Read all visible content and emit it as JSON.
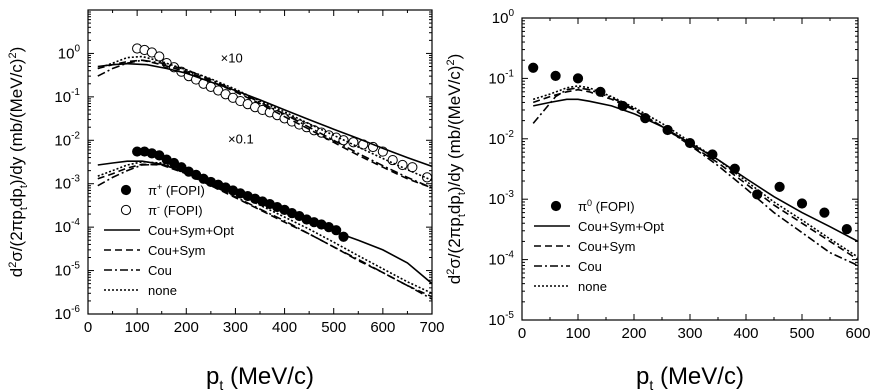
{
  "chart_data": [
    {
      "type": "scatter",
      "panel": "left",
      "xlabel_base": "p",
      "xlabel_sub": "t",
      "xlabel_unit": " (MeV/c)",
      "ylabel": "d²σ/(2πp_t dp_t)/dy (mb/(MeV/c)²)",
      "ylabel_parts": [
        "d",
        "2",
        "σ/(2πp",
        "t",
        "dp",
        "t",
        ")/dy (mb/(MeV/c)",
        "2",
        ")"
      ],
      "xlim": [
        0,
        700
      ],
      "ylim": [
        1e-06,
        10
      ],
      "yscale": "log",
      "xticks": [
        0,
        100,
        200,
        300,
        400,
        500,
        600,
        700
      ],
      "yticks": [
        -6,
        -5,
        -4,
        -3,
        -2,
        -1,
        0
      ],
      "annotations": [
        {
          "text": "×10",
          "x": 270,
          "y": 0.62
        },
        {
          "text": "×0.1",
          "x": 285,
          "y": 0.0085
        }
      ],
      "legend": {
        "placement": "bottom-left",
        "entries": [
          {
            "label_base": "π",
            "label_sup": "+",
            "label_rest": " (FOPI)",
            "marker": "filled-circle"
          },
          {
            "label_base": "π",
            "label_sup": "-",
            "label_rest": " (FOPI)",
            "marker": "open-circle"
          },
          {
            "label": "Cou+Sym+Opt",
            "dash": "solid"
          },
          {
            "label": "Cou+Sym",
            "dash": "dash"
          },
          {
            "label": "Cou",
            "dash": "dashdot"
          },
          {
            "label": "none",
            "dash": "dot"
          }
        ]
      },
      "series": [
        {
          "name": "π- (FOPI)",
          "kind": "points",
          "marker": "open",
          "x": [
            100,
            115,
            130,
            145,
            160,
            175,
            190,
            205,
            220,
            235,
            250,
            265,
            280,
            295,
            310,
            325,
            340,
            355,
            370,
            385,
            400,
            415,
            430,
            445,
            460,
            475,
            490,
            505,
            520,
            540,
            560,
            580,
            600,
            620,
            640,
            660,
            690
          ],
          "y": [
            1.3,
            1.2,
            1.05,
            0.85,
            0.6,
            0.48,
            0.38,
            0.3,
            0.25,
            0.2,
            0.17,
            0.14,
            0.115,
            0.095,
            0.08,
            0.068,
            0.058,
            0.05,
            0.044,
            0.038,
            0.032,
            0.027,
            0.023,
            0.02,
            0.017,
            0.015,
            0.013,
            0.0115,
            0.01,
            0.009,
            0.008,
            0.007,
            0.0055,
            0.0035,
            0.0027,
            0.0024,
            0.0014
          ]
        },
        {
          "name": "π+ (FOPI)",
          "kind": "points",
          "marker": "filled",
          "x": [
            100,
            115,
            130,
            145,
            160,
            175,
            190,
            205,
            220,
            235,
            250,
            265,
            280,
            295,
            310,
            325,
            340,
            355,
            370,
            385,
            400,
            415,
            430,
            445,
            460,
            475,
            490,
            505,
            520
          ],
          "y": [
            0.0055,
            0.0055,
            0.005,
            0.0045,
            0.0036,
            0.003,
            0.0024,
            0.0019,
            0.0016,
            0.0013,
            0.0011,
            0.00095,
            0.00082,
            0.0007,
            0.0006,
            0.00052,
            0.00045,
            0.00039,
            0.00034,
            0.00029,
            0.00025,
            0.00021,
            0.00018,
            0.00015,
            0.00013,
            0.000115,
            0.0001,
            8.5e-05,
            6e-05
          ]
        },
        {
          "name": "Cou+Sym+Opt (π-)",
          "kind": "line",
          "dash": "solid",
          "x": [
            20,
            50,
            80,
            120,
            160,
            200,
            250,
            300,
            350,
            400,
            450,
            500,
            550,
            600,
            650,
            700
          ],
          "y": [
            0.5,
            0.55,
            0.58,
            0.55,
            0.45,
            0.35,
            0.22,
            0.14,
            0.085,
            0.05,
            0.03,
            0.018,
            0.011,
            0.0065,
            0.004,
            0.0025
          ]
        },
        {
          "name": "Cou+Sym (π-)",
          "kind": "line",
          "dash": "dash",
          "x": [
            20,
            50,
            80,
            110,
            150,
            200,
            250,
            300,
            350,
            400,
            450,
            500,
            550,
            600,
            650,
            700
          ],
          "y": [
            0.45,
            0.55,
            0.65,
            0.7,
            0.55,
            0.38,
            0.23,
            0.13,
            0.07,
            0.035,
            0.018,
            0.009,
            0.0045,
            0.0024,
            0.0013,
            0.0008
          ]
        },
        {
          "name": "Cou (π-)",
          "kind": "line",
          "dash": "dashdot",
          "x": [
            20,
            50,
            80,
            110,
            150,
            200,
            250,
            300,
            350,
            400,
            450,
            500,
            550,
            600,
            650,
            700
          ],
          "y": [
            0.3,
            0.45,
            0.6,
            0.7,
            0.6,
            0.42,
            0.25,
            0.14,
            0.075,
            0.04,
            0.02,
            0.01,
            0.005,
            0.0026,
            0.0014,
            0.0008
          ]
        },
        {
          "name": "none (π-)",
          "kind": "line",
          "dash": "dot",
          "x": [
            20,
            50,
            80,
            110,
            150,
            200,
            250,
            300,
            350,
            400,
            450,
            500,
            550,
            600,
            650,
            700
          ],
          "y": [
            0.45,
            0.6,
            0.8,
            0.85,
            0.65,
            0.42,
            0.26,
            0.15,
            0.08,
            0.045,
            0.024,
            0.013,
            0.007,
            0.0038,
            0.0021,
            0.0012
          ]
        },
        {
          "name": "Cou+Sym+Opt (π+)",
          "kind": "line",
          "dash": "solid",
          "x": [
            20,
            50,
            80,
            110,
            150,
            200,
            250,
            300,
            350,
            400,
            450,
            500,
            550,
            600,
            650,
            700
          ],
          "y": [
            0.0027,
            0.003,
            0.0033,
            0.0033,
            0.0028,
            0.0018,
            0.0011,
            0.00065,
            0.0004,
            0.00024,
            0.00014,
            8e-05,
            5e-05,
            3e-05,
            1.5e-05,
            5e-06
          ]
        },
        {
          "name": "Cou+Sym (π+)",
          "kind": "line",
          "dash": "dash",
          "x": [
            20,
            50,
            80,
            110,
            150,
            200,
            250,
            300,
            350,
            400,
            450,
            500,
            550,
            600,
            650,
            700
          ],
          "y": [
            0.0013,
            0.0017,
            0.0023,
            0.0028,
            0.0027,
            0.0017,
            0.0009,
            0.00048,
            0.00025,
            0.00013,
            7e-05,
            3.5e-05,
            1.7e-05,
            9e-06,
            4.5e-06,
            2.5e-06
          ]
        },
        {
          "name": "Cou (π+)",
          "kind": "line",
          "dash": "dashdot",
          "x": [
            20,
            50,
            80,
            110,
            150,
            200,
            250,
            300,
            350,
            400,
            450,
            500,
            550,
            600,
            650,
            700
          ],
          "y": [
            0.0009,
            0.0014,
            0.002,
            0.0027,
            0.0028,
            0.0018,
            0.00095,
            0.0005,
            0.00026,
            0.00014,
            7e-05,
            3.5e-05,
            1.8e-05,
            9e-06,
            4.5e-06,
            2.2e-06
          ]
        },
        {
          "name": "none (π+)",
          "kind": "line",
          "dash": "dot",
          "x": [
            20,
            50,
            80,
            110,
            150,
            200,
            250,
            300,
            350,
            400,
            450,
            500,
            550,
            600,
            650,
            700
          ],
          "y": [
            0.0015,
            0.002,
            0.0027,
            0.0032,
            0.003,
            0.002,
            0.0011,
            0.0006,
            0.00032,
            0.00017,
            9e-05,
            4.5e-05,
            2.2e-05,
            1.1e-05,
            5.5e-06,
            3e-06
          ]
        }
      ]
    },
    {
      "type": "scatter",
      "panel": "right",
      "xlabel_base": "p",
      "xlabel_sub": "t",
      "xlabel_unit": " (MeV/c)",
      "ylabel": "d²σ/(2πp_t dp_t)/dy (mb/(MeV/c)²)",
      "ylabel_parts": [
        "d",
        "2",
        "σ/(2πp",
        "t",
        "dp",
        "t",
        ")/dy (mb/(MeV/c)",
        "2",
        ")"
      ],
      "xlim": [
        0,
        600
      ],
      "ylim": [
        1e-05,
        1
      ],
      "yscale": "log",
      "xticks": [
        0,
        100,
        200,
        300,
        400,
        500,
        600
      ],
      "yticks": [
        -5,
        -4,
        -3,
        -2,
        -1,
        0
      ],
      "legend": {
        "placement": "bottom-left",
        "entries": [
          {
            "label_base": "π",
            "label_sup": "0",
            "label_rest": " (FOPI)",
            "marker": "filled-circle"
          },
          {
            "label": "Cou+Sym+Opt",
            "dash": "solid"
          },
          {
            "label": "Cou+Sym",
            "dash": "dash"
          },
          {
            "label": "Cou",
            "dash": "dashdot"
          },
          {
            "label": "none",
            "dash": "dot"
          }
        ]
      },
      "series": [
        {
          "name": "π0 (FOPI)",
          "kind": "points",
          "marker": "filled",
          "x": [
            20,
            60,
            100,
            140,
            180,
            220,
            260,
            300,
            340,
            380,
            420,
            460,
            500,
            540,
            580
          ],
          "y": [
            0.15,
            0.11,
            0.1,
            0.06,
            0.035,
            0.022,
            0.014,
            0.0085,
            0.0055,
            0.0032,
            0.0012,
            0.0016,
            0.00085,
            0.0006,
            0.00032
          ]
        },
        {
          "name": "Cou+Sym+Opt",
          "kind": "line",
          "dash": "solid",
          "x": [
            20,
            50,
            80,
            100,
            120,
            160,
            200,
            250,
            300,
            350,
            400,
            450,
            500,
            550,
            600
          ],
          "y": [
            0.035,
            0.04,
            0.045,
            0.045,
            0.042,
            0.035,
            0.026,
            0.016,
            0.0085,
            0.0045,
            0.0022,
            0.0011,
            0.0006,
            0.00035,
            0.0002
          ]
        },
        {
          "name": "Cou+Sym",
          "kind": "line",
          "dash": "dash",
          "x": [
            20,
            50,
            80,
            100,
            120,
            160,
            200,
            250,
            300,
            350,
            400,
            450,
            500,
            550,
            600
          ],
          "y": [
            0.04,
            0.05,
            0.06,
            0.065,
            0.06,
            0.045,
            0.03,
            0.016,
            0.008,
            0.004,
            0.0018,
            0.0008,
            0.0004,
            0.0002,
            0.0001
          ]
        },
        {
          "name": "Cou",
          "kind": "line",
          "dash": "dashdot",
          "x": [
            20,
            40,
            60,
            80,
            100,
            120,
            160,
            200,
            250,
            300,
            350,
            400,
            450,
            500,
            550,
            600
          ],
          "y": [
            0.018,
            0.03,
            0.05,
            0.065,
            0.07,
            0.065,
            0.048,
            0.031,
            0.016,
            0.0078,
            0.0036,
            0.0015,
            0.0006,
            0.00028,
            0.00013,
            8e-05
          ]
        },
        {
          "name": "none",
          "kind": "line",
          "dash": "dot",
          "x": [
            20,
            50,
            80,
            100,
            120,
            160,
            200,
            250,
            300,
            350,
            400,
            450,
            500,
            550,
            600
          ],
          "y": [
            0.045,
            0.055,
            0.07,
            0.075,
            0.07,
            0.05,
            0.033,
            0.018,
            0.009,
            0.0045,
            0.002,
            0.0009,
            0.00045,
            0.00022,
            0.00011
          ]
        }
      ]
    }
  ]
}
